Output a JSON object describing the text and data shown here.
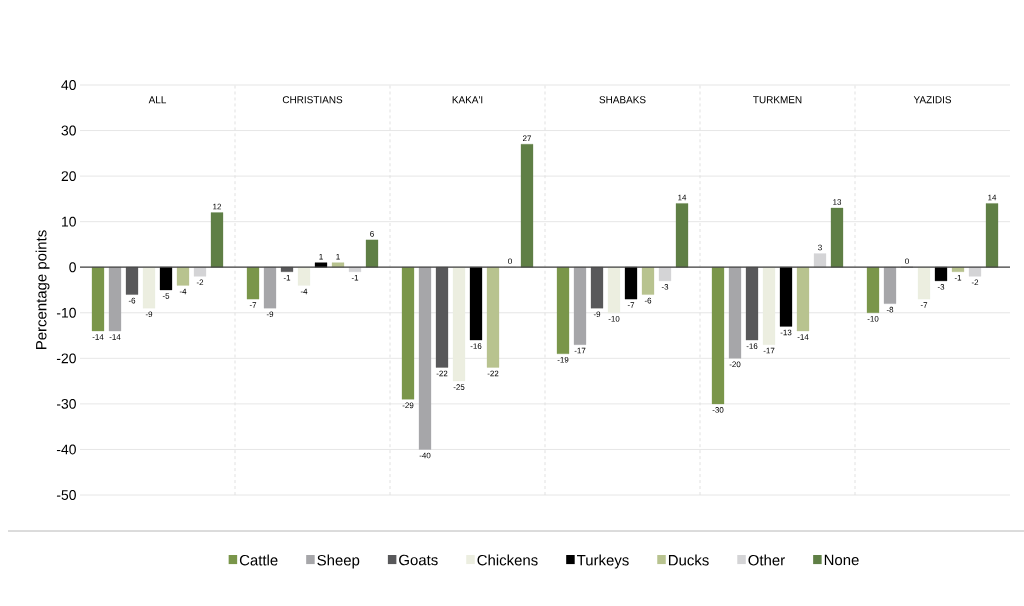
{
  "chart_data": {
    "type": "bar",
    "ylabel": "Percentage points",
    "categories": [
      "ALL",
      "CHRISTIANS",
      "KAKA'I",
      "SHABAKS",
      "TURKMEN",
      "YAZIDIS"
    ],
    "series": [
      {
        "name": "Cattle",
        "color": "#7a964a",
        "values": [
          -14,
          -7,
          -29,
          -19,
          -30,
          -10
        ]
      },
      {
        "name": "Sheep",
        "color": "#a6a6a9",
        "values": [
          -14,
          -9,
          -40,
          -17,
          -20,
          -8
        ]
      },
      {
        "name": "Goats",
        "color": "#58585a",
        "values": [
          -6,
          -1,
          -22,
          -9,
          -16,
          0
        ]
      },
      {
        "name": "Chickens",
        "color": "#eceee0",
        "values": [
          -9,
          -4,
          -25,
          -10,
          -17,
          -7
        ]
      },
      {
        "name": "Turkeys",
        "color": "#000000",
        "values": [
          -5,
          1,
          -16,
          -7,
          -13,
          -3
        ]
      },
      {
        "name": "Ducks",
        "color": "#b8c38f",
        "values": [
          -4,
          1,
          -22,
          -6,
          -14,
          -1
        ]
      },
      {
        "name": "Other",
        "color": "#d4d4d6",
        "values": [
          -2,
          -1,
          0,
          -3,
          3,
          -2
        ]
      },
      {
        "name": "None",
        "color": "#5f7f45",
        "values": [
          12,
          6,
          27,
          14,
          13,
          14
        ]
      }
    ],
    "ylim": [
      -50,
      40
    ],
    "yticks": [
      -50,
      -40,
      -30,
      -20,
      -10,
      0,
      10,
      20,
      30,
      40
    ],
    "grid": "y",
    "legend": "bottom",
    "data_labels": true,
    "ref_lines": [
      {
        "axis": "y",
        "value": 0,
        "color": "#404040"
      }
    ]
  }
}
